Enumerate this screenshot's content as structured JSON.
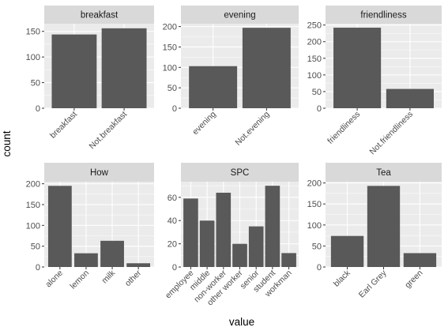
{
  "chart_data": {
    "type": "bar",
    "xlabel": "value",
    "ylabel": "count",
    "grid": true,
    "panels": [
      {
        "title": "breakfast",
        "categories": [
          "breakfast",
          "Not.breakfast"
        ],
        "values": [
          144,
          156
        ],
        "ylim": [
          0,
          165
        ],
        "yticks": [
          0,
          50,
          100,
          150
        ]
      },
      {
        "title": "evening",
        "categories": [
          "evening",
          "Not.evening"
        ],
        "values": [
          103,
          197
        ],
        "ylim": [
          0,
          207
        ],
        "yticks": [
          0,
          50,
          100,
          150,
          200
        ]
      },
      {
        "title": "friendliness",
        "categories": [
          "friendliness",
          "Not.friendliness"
        ],
        "values": [
          242,
          58
        ],
        "ylim": [
          0,
          254
        ],
        "yticks": [
          0,
          50,
          100,
          150,
          200,
          250
        ]
      },
      {
        "title": "How",
        "categories": [
          "alone",
          "lemon",
          "milk",
          "other"
        ],
        "values": [
          195,
          33,
          63,
          9
        ],
        "ylim": [
          0,
          205
        ],
        "yticks": [
          0,
          50,
          100,
          150,
          200
        ]
      },
      {
        "title": "SPC",
        "categories": [
          "employee",
          "middle",
          "non-worker",
          "other worker",
          "senior",
          "student",
          "workman"
        ],
        "values": [
          59,
          40,
          64,
          20,
          35,
          70,
          12
        ],
        "ylim": [
          0,
          73.5
        ],
        "yticks": [
          0,
          20,
          40,
          60
        ]
      },
      {
        "title": "Tea",
        "categories": [
          "black",
          "Earl Grey",
          "green"
        ],
        "values": [
          74,
          193,
          33
        ],
        "ylim": [
          0,
          203
        ],
        "yticks": [
          0,
          50,
          100,
          150,
          200
        ]
      }
    ]
  }
}
